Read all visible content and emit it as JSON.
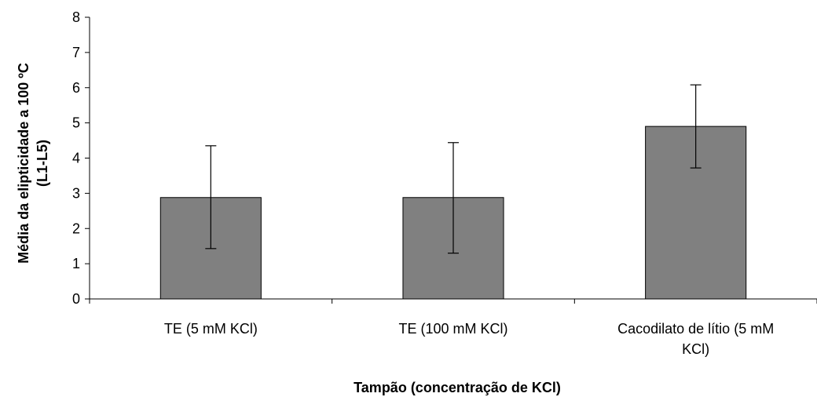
{
  "chart_data": {
    "type": "bar",
    "xlabel": "Tampão (concentração de KCl)",
    "ylabel_lines": [
      "Média da elipticidade a 100 ºC",
      "(L1-L5)"
    ],
    "categories": [
      {
        "lines": [
          "TE (5 mM KCl)"
        ]
      },
      {
        "lines": [
          "TE (100 mM KCl)"
        ]
      },
      {
        "lines": [
          "Cacodilato de lítio (5 mM",
          "KCl)"
        ]
      }
    ],
    "values": [
      2.88,
      2.88,
      4.9
    ],
    "error_low": [
      1.43,
      1.3,
      3.72
    ],
    "error_high": [
      4.35,
      4.44,
      6.08
    ],
    "ylim": [
      0,
      8
    ],
    "yticks": [
      "0",
      "1",
      "2",
      "3",
      "4",
      "5",
      "6",
      "7",
      "8"
    ],
    "grid": false,
    "legend": "none",
    "bar_color": "#808080"
  }
}
